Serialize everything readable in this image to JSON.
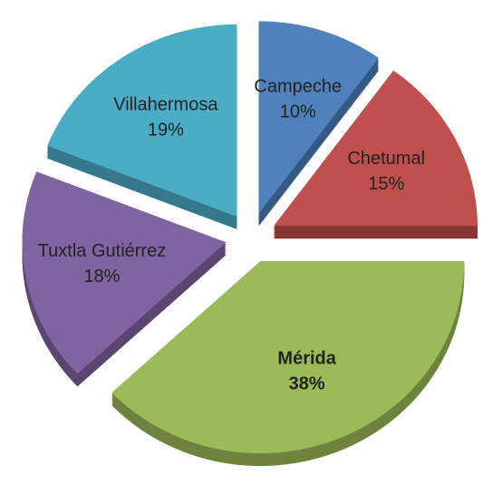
{
  "chart_data": {
    "type": "pie",
    "categories": [
      "Campeche",
      "Chetumal",
      "Mérida",
      "Tuxtla Gutiérrez",
      "Villahermosa"
    ],
    "values": [
      10,
      15,
      38,
      18,
      19
    ],
    "value_labels": [
      "10%",
      "15%",
      "38%",
      "18%",
      "19%"
    ],
    "colors": [
      "#4f81bd",
      "#c0504d",
      "#9bbb59",
      "#8064a2",
      "#4bacc6"
    ]
  }
}
